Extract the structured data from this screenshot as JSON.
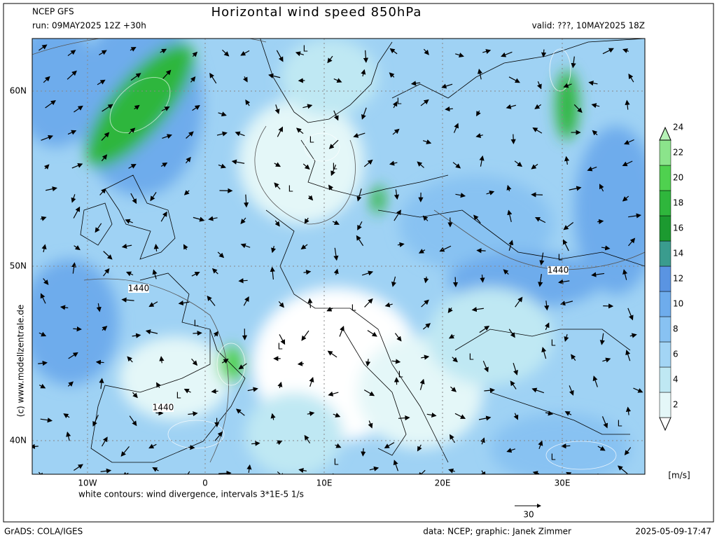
{
  "header": {
    "model": "NCEP GFS",
    "run": "run: 09MAY2025 12Z +30h",
    "title": "Horizontal wind speed 850hPa",
    "valid": "valid: ???, 10MAY2025 18Z"
  },
  "map": {
    "lat_labels": [
      "60N",
      "50N",
      "40N"
    ],
    "lon_labels": [
      "10W",
      "0",
      "10E",
      "20E",
      "30E"
    ],
    "pressure_labels": [
      "L",
      "L",
      "L",
      "L",
      "L",
      "L",
      "L",
      "L",
      "L",
      "L",
      "L",
      "L",
      "L",
      "L",
      "L",
      "L"
    ],
    "contour_labels": [
      "1440",
      "1440",
      "1440"
    ],
    "credit": "(c) www.modellzentrale.de"
  },
  "colorbar": {
    "labels": [
      "2",
      "4",
      "6",
      "8",
      "10",
      "12",
      "14",
      "16",
      "18",
      "20",
      "22",
      "24"
    ],
    "colors": [
      "#ffffff",
      "#e4f7f8",
      "#bfe8f3",
      "#a3d5f5",
      "#88c2f2",
      "#6eacec",
      "#5a94e2",
      "#3a9c8e",
      "#1c9a30",
      "#2fb63c",
      "#4fd14f",
      "#8be48b",
      "#b6f2b6"
    ],
    "unit": "[m/s]"
  },
  "footer": {
    "contour_note": "white contours: wind divergence, intervals 3*1E-5 1/s",
    "ref_vector": "30",
    "grads": "GrADS: COLA/IGES",
    "data": "data: NCEP; graphic: Janek Zimmer",
    "timestamp": "2025-05-09-17:47"
  }
}
